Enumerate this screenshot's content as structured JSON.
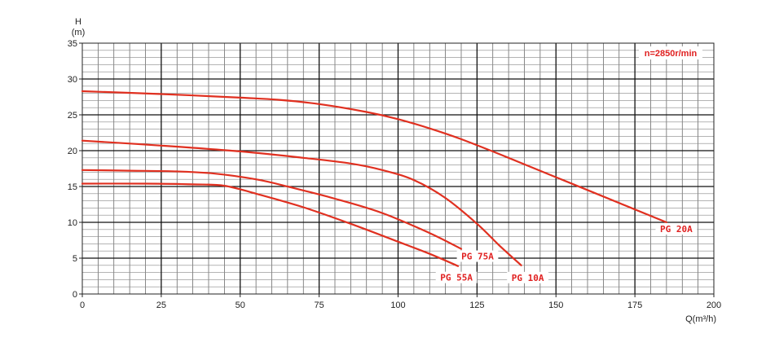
{
  "chart_data": {
    "type": "line",
    "title": "",
    "xlabel": "Q(m³/h)",
    "ylabel_top": "H",
    "ylabel_unit": "(m)",
    "xlim": [
      0,
      200
    ],
    "ylim": [
      0,
      35
    ],
    "x_ticks": [
      "0",
      "25",
      "50",
      "75",
      "100",
      "125",
      "150",
      "175",
      "200"
    ],
    "y_ticks": [
      "0",
      "5",
      "10",
      "15",
      "20",
      "25",
      "30",
      "35"
    ],
    "grid": true,
    "series_color": "#e03020",
    "label_color": "#e02020",
    "speed_annotation": "n=2850r/min",
    "series": [
      {
        "name": "PG 20A",
        "x": [
          0,
          25,
          50,
          62,
          75,
          90,
          100,
          110,
          120,
          135,
          150,
          165,
          185
        ],
        "y": [
          28.3,
          27.9,
          27.4,
          27.1,
          26.5,
          25.4,
          24.4,
          23.1,
          21.6,
          19.0,
          16.3,
          13.6,
          10.0
        ]
      },
      {
        "name": "PG 10A",
        "x": [
          0,
          25,
          50,
          70,
          85,
          95,
          105,
          115,
          125,
          132,
          139
        ],
        "y": [
          21.4,
          20.7,
          19.9,
          19.0,
          18.2,
          17.3,
          15.9,
          13.4,
          9.8,
          6.8,
          4.0
        ]
      },
      {
        "name": "PG 75A",
        "x": [
          0,
          15,
          30,
          42,
          55,
          65,
          80,
          95,
          110,
          120
        ],
        "y": [
          17.3,
          17.2,
          17.1,
          16.8,
          16.0,
          15.0,
          13.3,
          11.3,
          8.5,
          6.3
        ]
      },
      {
        "name": "PG 55A",
        "x": [
          0,
          20,
          35,
          45,
          55,
          70,
          85,
          100,
          110,
          119
        ],
        "y": [
          15.4,
          15.4,
          15.3,
          15.1,
          14.0,
          12.1,
          9.8,
          7.3,
          5.6,
          3.9
        ]
      }
    ]
  }
}
